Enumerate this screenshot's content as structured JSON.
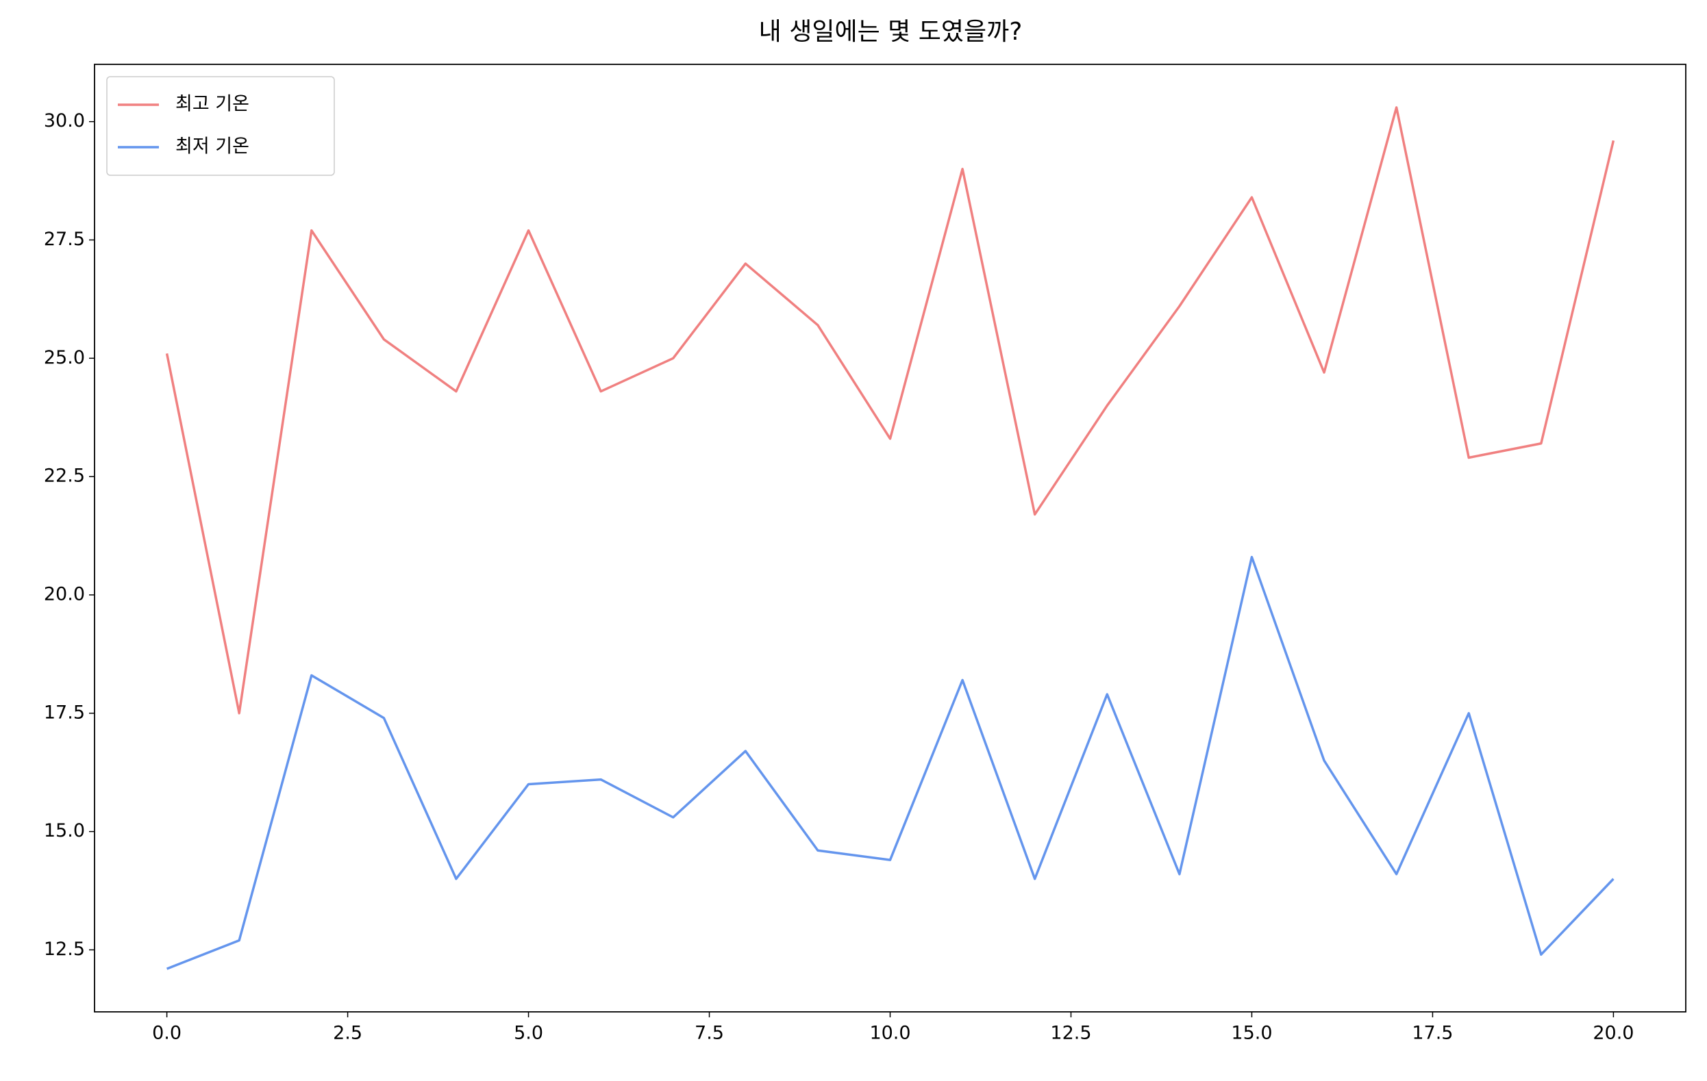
{
  "chart_data": {
    "type": "line",
    "title": "내 생일에는 몇 도였을까?",
    "x": [
      0,
      1,
      2,
      3,
      4,
      5,
      6,
      7,
      8,
      9,
      10,
      11,
      12,
      13,
      14,
      15,
      16,
      17,
      18,
      19,
      20
    ],
    "series": [
      {
        "name": "최고 기온",
        "color": "#f08080",
        "values": [
          25.1,
          17.5,
          27.7,
          25.4,
          24.3,
          27.7,
          24.3,
          25.0,
          27.0,
          25.7,
          23.3,
          29.0,
          21.7,
          24.0,
          26.1,
          28.4,
          24.7,
          30.3,
          22.9,
          23.2,
          29.6
        ]
      },
      {
        "name": "최저 기온",
        "color": "#6495ed",
        "values": [
          12.1,
          12.7,
          18.3,
          17.4,
          14.0,
          16.0,
          16.1,
          15.3,
          16.7,
          14.6,
          14.4,
          18.2,
          14.0,
          17.9,
          14.1,
          20.8,
          16.5,
          14.1,
          17.5,
          12.4,
          14.0
        ]
      }
    ],
    "xlim": [
      -1.0,
      21.0
    ],
    "xticks": [
      {
        "value": 0,
        "label": "0.0"
      },
      2.5,
      {
        "value": 5,
        "label": "5.0"
      },
      7.5,
      {
        "value": 10,
        "label": "10.0"
      },
      12.5,
      {
        "value": 15,
        "label": "15.0"
      },
      17.5,
      {
        "value": 20,
        "label": "20.0"
      }
    ],
    "ylim": [
      11.19,
      31.21
    ],
    "yticks": [
      12.5,
      {
        "value": 15,
        "label": "15.0"
      },
      17.5,
      {
        "value": 20,
        "label": "20.0"
      },
      22.5,
      {
        "value": 25,
        "label": "25.0"
      },
      27.5,
      {
        "value": 30,
        "label": "30.0"
      }
    ],
    "grid": false,
    "legend": "upper left"
  }
}
